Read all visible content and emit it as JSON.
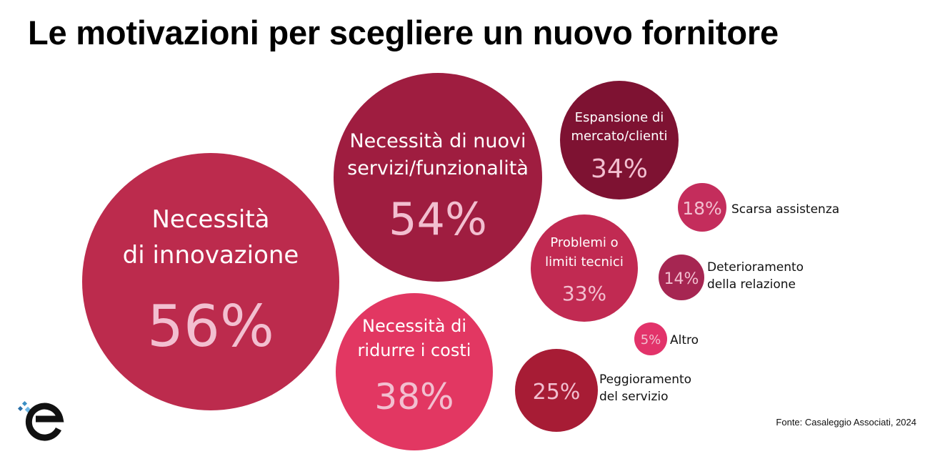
{
  "title": "Le motivazioni per scegliere un nuovo fornitore",
  "source": "Fonte: Casaleggio Associati, 2024",
  "chart_data": {
    "type": "bubble",
    "unit": "%",
    "items": [
      {
        "label": "Necessità di innovazione",
        "lines": [
          "Necessità",
          "di innovazione"
        ],
        "value": 56,
        "display": "56%",
        "color": "#BC2B4D"
      },
      {
        "label": "Necessità di nuovi servizi/funzionalità",
        "lines": [
          "Necessità di nuovi",
          "servizi/funzionalità"
        ],
        "value": 54,
        "display": "54%",
        "color": "#9F1D40"
      },
      {
        "label": "Necessità di ridurre i costi",
        "lines": [
          "Necessità di",
          "ridurre i costi"
        ],
        "value": 38,
        "display": "38%",
        "color": "#E23762"
      },
      {
        "label": "Espansione di mercato/clienti",
        "lines": [
          "Espansione di",
          "mercato/clienti"
        ],
        "value": 34,
        "display": "34%",
        "color": "#7E1232"
      },
      {
        "label": "Problemi o limiti tecnici",
        "lines": [
          "Problemi o",
          "limiti tecnici"
        ],
        "value": 33,
        "display": "33%",
        "color": "#C12A52"
      },
      {
        "label": "Peggioramento del servizio",
        "lines": [
          "Peggioramento",
          "del servizio"
        ],
        "value": 25,
        "display": "25%",
        "color": "#A71C35"
      },
      {
        "label": "Scarsa assistenza",
        "lines": [
          "Scarsa assistenza"
        ],
        "value": 18,
        "display": "18%",
        "color": "#C42D5C"
      },
      {
        "label": "Deterioramento della relazione",
        "lines": [
          "Deterioramento",
          "della relazione"
        ],
        "value": 14,
        "display": "14%",
        "color": "#A62652"
      },
      {
        "label": "Altro",
        "lines": [
          "Altro"
        ],
        "value": 5,
        "display": "5%",
        "color": "#E2336A"
      }
    ]
  }
}
